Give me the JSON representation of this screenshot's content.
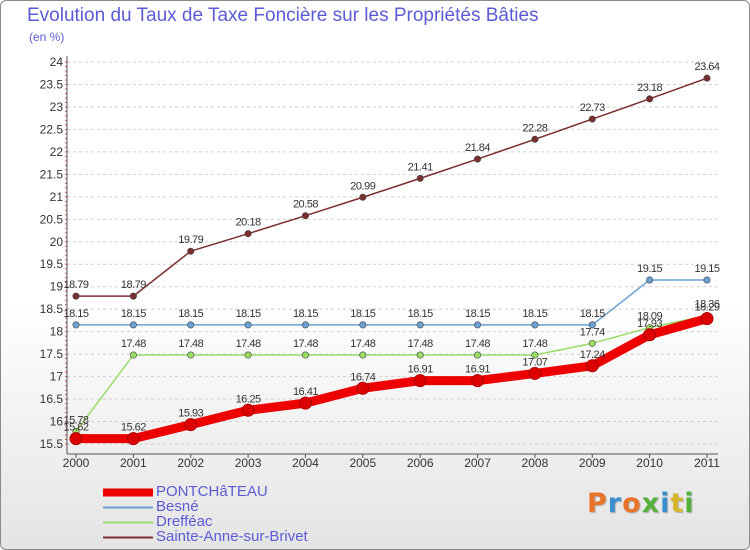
{
  "title": "Evolution du Taux de Taxe Foncière sur les Propriétés Bâties",
  "unit_label": "(en %)",
  "brand": {
    "text": "Proxiti",
    "letter_colors": [
      "#e8742a",
      "#3a8fd0",
      "#e8742a",
      "#55b03a",
      "#3a8fd0",
      "#d8b62a",
      "#55b03a"
    ]
  },
  "chart_data": {
    "type": "line",
    "title": "Evolution du Taux de Taxe Foncière sur les Propriétés Bâties",
    "xlabel": "",
    "ylabel": "(en %)",
    "x": [
      "2000",
      "2001",
      "2002",
      "2003",
      "2004",
      "2005",
      "2006",
      "2007",
      "2008",
      "2009",
      "2010",
      "2011"
    ],
    "ylim": [
      15.5,
      24
    ],
    "yticks": [
      "15.5",
      "16",
      "16.5",
      "17",
      "17.5",
      "18",
      "18.5",
      "19",
      "19.5",
      "20",
      "20.5",
      "21",
      "21.5",
      "22",
      "22.5",
      "23",
      "23.5",
      "24"
    ],
    "grid": "horizontal-dashed",
    "series": [
      {
        "name": "PONTCHâTEAU",
        "color": "#ee0000",
        "style": "thick",
        "values": [
          15.62,
          15.62,
          15.93,
          16.25,
          16.41,
          16.74,
          16.91,
          16.91,
          17.07,
          17.24,
          17.93,
          18.29
        ],
        "labels": [
          "15.62",
          "15.62",
          "15.93",
          "16.25",
          "16.41",
          "16.74",
          "16.91",
          "16.91",
          "17.07",
          "17.24",
          "17.93",
          "18.29"
        ]
      },
      {
        "name": "Besné",
        "color": "#6aa0d2",
        "style": "thin",
        "values": [
          18.15,
          18.15,
          18.15,
          18.15,
          18.15,
          18.15,
          18.15,
          18.15,
          18.15,
          18.15,
          19.15,
          19.15
        ],
        "labels": [
          "18.15",
          "18.15",
          "18.15",
          "18.15",
          "18.15",
          "18.15",
          "18.15",
          "18.15",
          "18.15",
          "18.15",
          "19.15",
          "19.15"
        ]
      },
      {
        "name": "Drefféac",
        "color": "#99dd66",
        "style": "thin",
        "values": [
          15.78,
          17.48,
          17.48,
          17.48,
          17.48,
          17.48,
          17.48,
          17.48,
          17.48,
          17.74,
          18.09,
          18.36
        ],
        "labels": [
          "15.78",
          "17.48",
          "17.48",
          "17.48",
          "17.48",
          "17.48",
          "17.48",
          "17.48",
          "17.48",
          "17.74",
          "18.09",
          "18.36"
        ]
      },
      {
        "name": "Sainte-Anne-sur-Brivet",
        "color": "#7a2e2e",
        "style": "thin",
        "values": [
          18.79,
          18.79,
          19.79,
          20.18,
          20.58,
          20.99,
          21.41,
          21.84,
          22.28,
          22.73,
          23.18,
          23.64
        ],
        "labels": [
          "18.79",
          "18.79",
          "19.79",
          "20.18",
          "20.58",
          "20.99",
          "21.41",
          "21.84",
          "22.28",
          "22.73",
          "23.18",
          "23.64"
        ]
      }
    ]
  }
}
